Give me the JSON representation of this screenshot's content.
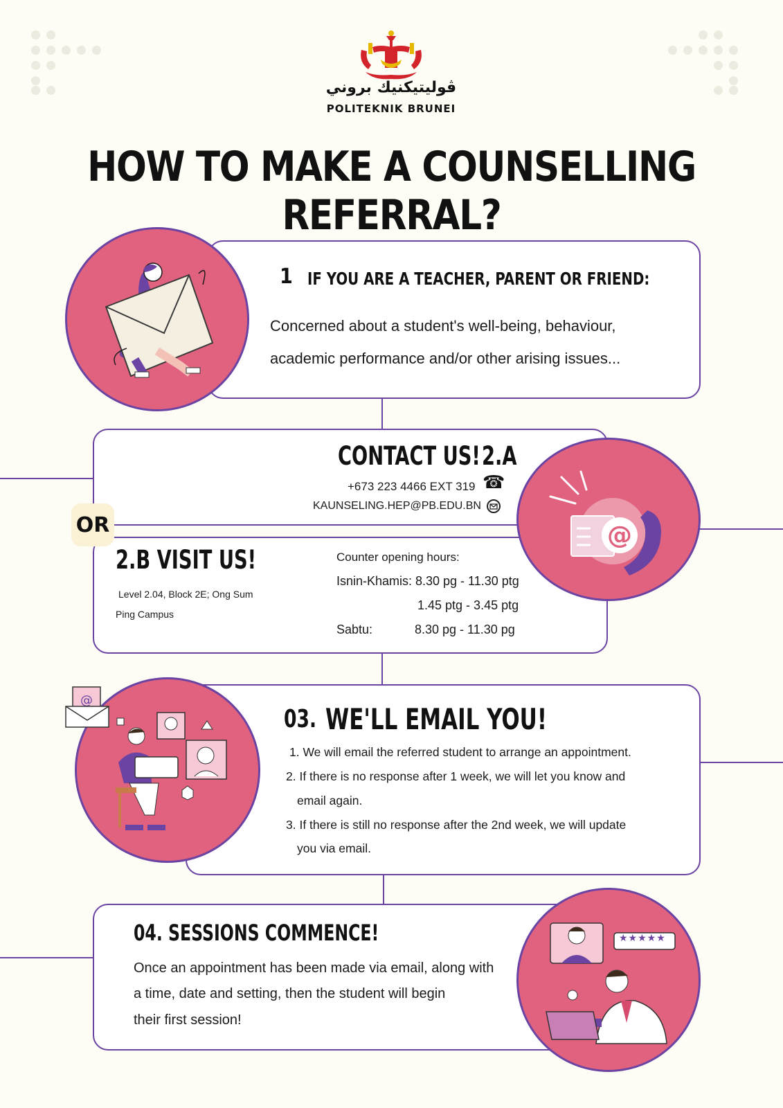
{
  "logo": {
    "arabic_text": "ڤوليتيكنيك بروني",
    "latin_text": "POLITEKNIK BRUNEI"
  },
  "title": "HOW TO MAKE A COUNSELLING REFERRAL?",
  "step1": {
    "number": "1",
    "heading": "IF YOU ARE A TEACHER, PARENT OR FRIEND:",
    "line1": "Concerned about a student's well-being, behaviour,",
    "line2": "academic performance and/or other arising issues..."
  },
  "step2a": {
    "heading": "CONTACT US!",
    "tag": "2.A",
    "phone": "+673 223 4466 EXT 319",
    "email": "KAUNSELING.HEP@PB.EDU.BN",
    "phone_icon": "phone-icon",
    "email_icon": "envelope-icon"
  },
  "or_label": "OR",
  "step2b": {
    "heading": "2.B VISIT US!",
    "address_line1": "Level 2.04, Block 2E; Ong Sum",
    "address_line2": "Ping Campus",
    "hours_label": "Counter opening hours:",
    "row1_day": "Isnin-Khamis:",
    "row1_time": "8.30 pg - 11.30 ptg",
    "row2_time": "1.45 ptg - 3.45 ptg",
    "row3_day": "Sabtu:",
    "row3_time": "8.30 pg - 11.30 pg"
  },
  "step3": {
    "number": "03.",
    "heading": "WE'LL EMAIL YOU!",
    "item1": "1. We will email the referred student to arrange an appointment.",
    "item2a": "2. If there is no response after 1 week, we will let you know and",
    "item2b": "email again.",
    "item3a": "3. If there is still no response after the 2nd week, we will update",
    "item3b": "you via email."
  },
  "step4": {
    "heading": "04. SESSIONS COMMENCE!",
    "line1": "Once an appointment has been made via email, along with",
    "line2": "a time, date and setting, then the student will begin",
    "line3": "their first session!",
    "rating": "★★★★★"
  },
  "colors": {
    "background": "#fdfdf5",
    "accent_purple": "#6a43a3",
    "circle_pink": "#e0627f",
    "logo_red": "#d3242c",
    "logo_gold": "#e6b800"
  }
}
